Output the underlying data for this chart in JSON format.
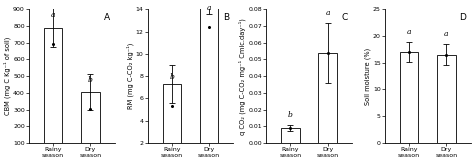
{
  "panels": [
    {
      "label": "A",
      "ylabel": "CBM (mg C Kg⁻¹ of soil)",
      "ylim": [
        100,
        900
      ],
      "yticks": [
        100,
        200,
        300,
        400,
        500,
        600,
        700,
        800,
        900
      ],
      "ytick_labels": [
        "100",
        "200",
        "300",
        "400",
        "500",
        "600",
        "700",
        "800",
        "900"
      ],
      "categories": [
        "Rainy\nseason",
        "Dry\nseason"
      ],
      "values": [
        690,
        305
      ],
      "errors": [
        115,
        110
      ],
      "sig_labels": [
        "a",
        "b"
      ],
      "bar_color": "white",
      "edge_color": "black"
    },
    {
      "label": "B",
      "ylabel": "RM (mg C-CO₂ kg⁻¹)",
      "ylim": [
        2,
        14
      ],
      "yticks": [
        2,
        4,
        6,
        8,
        10,
        12,
        14
      ],
      "ytick_labels": [
        "2",
        "4",
        "6",
        "8",
        "10",
        "12",
        "14"
      ],
      "categories": [
        "Rainy\nseason",
        "Dry\nseason"
      ],
      "values": [
        5.3,
        12.4
      ],
      "errors": [
        1.7,
        0.85
      ],
      "sig_labels": [
        "b",
        "a"
      ],
      "bar_color": "white",
      "edge_color": "black"
    },
    {
      "label": "C",
      "ylabel": "q CO₂ (mg C-CO₂ mg⁻¹ Cmic.day⁻¹)",
      "ylim": [
        0.0,
        0.08
      ],
      "yticks": [
        0.0,
        0.01,
        0.02,
        0.03,
        0.04,
        0.05,
        0.06,
        0.07,
        0.08
      ],
      "ytick_labels": [
        "0.00",
        "0.01",
        "0.02",
        "0.03",
        "0.04",
        "0.05",
        "0.06",
        "0.07",
        "0.08"
      ],
      "categories": [
        "Rainy\nseason",
        "Dry\nseason"
      ],
      "values": [
        0.009,
        0.054
      ],
      "errors": [
        0.002,
        0.018
      ],
      "sig_labels": [
        "b",
        "a"
      ],
      "bar_color": "white",
      "edge_color": "black"
    },
    {
      "label": "D",
      "ylabel": "Soil moisture (%)",
      "ylim": [
        0,
        25
      ],
      "yticks": [
        0,
        5,
        10,
        15,
        20,
        25
      ],
      "ytick_labels": [
        "0",
        "5",
        "10",
        "15",
        "20",
        "25"
      ],
      "categories": [
        "Rainy\nseason",
        "Dry\nseason"
      ],
      "values": [
        17.0,
        16.5
      ],
      "errors": [
        1.8,
        2.0
      ],
      "sig_labels": [
        "a",
        "a"
      ],
      "bar_color": "white",
      "edge_color": "black"
    }
  ],
  "fig_width": 4.74,
  "fig_height": 1.61,
  "dpi": 100,
  "bar_width": 0.5,
  "label_font_size": 4.8,
  "tick_font_size": 4.5,
  "sig_font_size": 5.5,
  "panel_label_font_size": 6.5,
  "xtick_font_size": 4.5
}
